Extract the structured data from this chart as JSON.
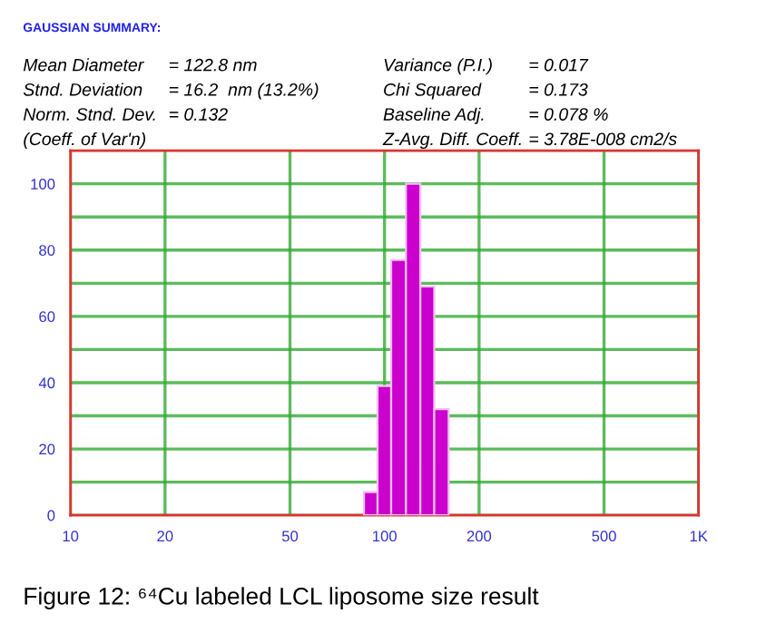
{
  "chart_data": {
    "type": "histogram",
    "title": "GAUSSIAN SUMMARY:",
    "annotations": [
      "Mean Diameter",
      "= 122.8 nm",
      "Variance (P.I.)",
      "= 0.017",
      "Stnd. Deviation",
      "= 16.2  nm (13.2%)",
      "Chi Squared",
      "= 0.173",
      "Norm. Stnd. Dev.",
      "= 0.132",
      "Baseline Adj.",
      "= 0.078 %",
      "(Coeff. of Var'n)",
      "Z-Avg. Diff. Coeff.",
      "= 3.78E-008 cm2/s",
      "Figure 12: ⁶⁴Cu labeled LCL liposome size result"
    ],
    "bins": [
      86,
      95,
      105,
      117,
      130,
      144,
      160
    ],
    "values": [
      7,
      39,
      77,
      100,
      69,
      32
    ],
    "color": "#cc00cc",
    "log": "x",
    "xlim": [
      10,
      1000
    ],
    "xticks": [
      10,
      20,
      50,
      100,
      200,
      500,
      {
        "value": 1000,
        "label": "1K"
      }
    ],
    "ylim": [
      0,
      110
    ],
    "yticks": [
      0,
      {
        "value": 10,
        "label": null
      },
      20,
      {
        "value": 30,
        "label": null
      },
      40,
      {
        "value": 50,
        "label": null
      },
      60,
      {
        "value": 70,
        "label": null
      },
      80,
      {
        "value": 90,
        "label": null
      },
      100
    ],
    "grid": true
  }
}
